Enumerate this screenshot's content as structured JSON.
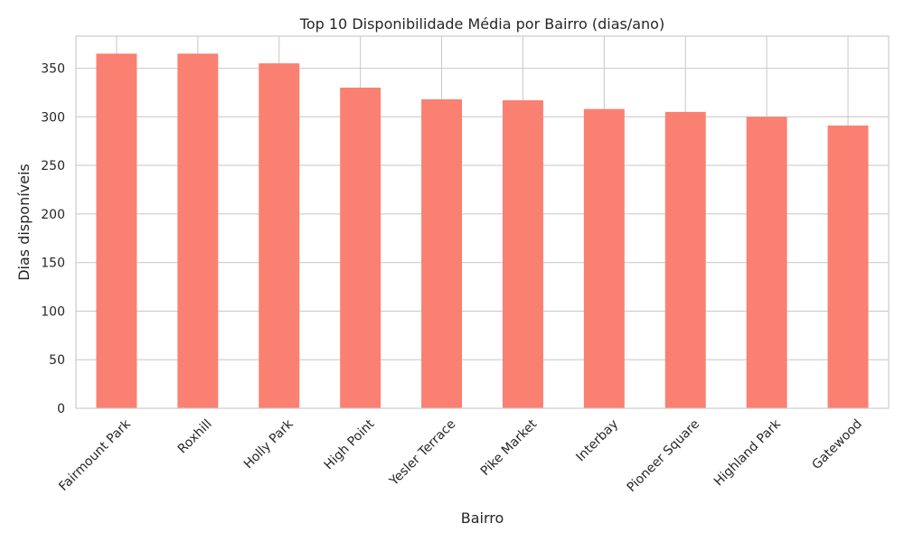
{
  "chart_data": {
    "type": "bar",
    "title": "Top 10 Disponibilidade Média por Bairro (dias/ano)",
    "xlabel": "Bairro",
    "ylabel": "Dias disponíveis",
    "categories": [
      "Fairmount Park",
      "Roxhill",
      "Holly Park",
      "High Point",
      "Yesler Terrace",
      "Pike Market",
      "Interbay",
      "Pioneer Square",
      "Highland Park",
      "Gatewood"
    ],
    "values": [
      365,
      365,
      355,
      330,
      318,
      317,
      308,
      305,
      300,
      291
    ],
    "ylim": [
      0,
      383
    ],
    "yticks": [
      0,
      50,
      100,
      150,
      200,
      250,
      300,
      350
    ],
    "grid": true,
    "bar_color": "#fa8072",
    "grid_color": "#cccccc",
    "frame_color": "#cccccc"
  }
}
